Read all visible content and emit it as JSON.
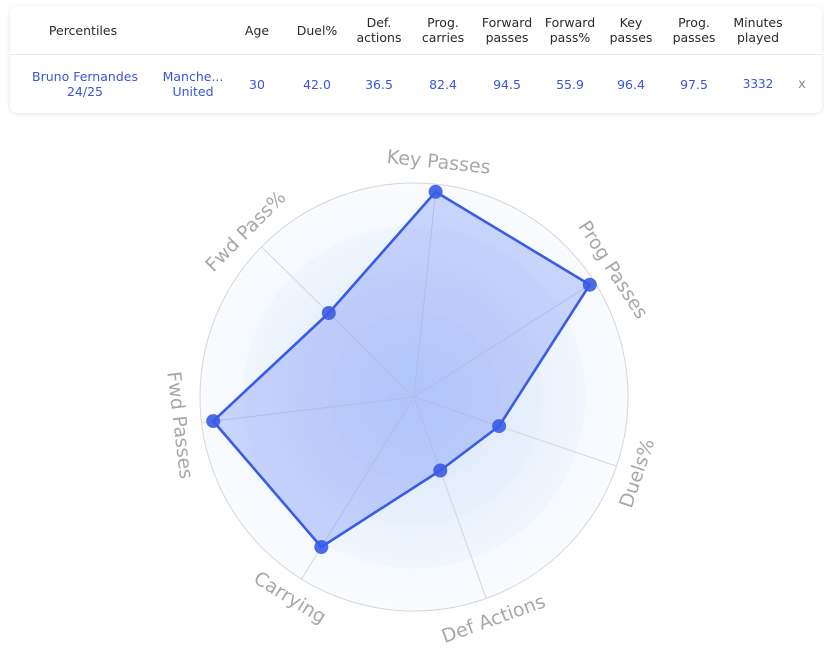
{
  "table": {
    "headers": [
      {
        "key": "percentiles",
        "label": "Percentiles"
      },
      {
        "key": "team",
        "label": ""
      },
      {
        "key": "age",
        "label": "Age"
      },
      {
        "key": "duel",
        "label": "Duel%"
      },
      {
        "key": "def_actions",
        "label": "Def.\nactions"
      },
      {
        "key": "prog_carries",
        "label": "Prog.\ncarries"
      },
      {
        "key": "forward_passes",
        "label": "Forward\npasses"
      },
      {
        "key": "forward_pass_pct",
        "label": "Forward\npass%"
      },
      {
        "key": "key_passes",
        "label": "Key\npasses"
      },
      {
        "key": "prog_passes",
        "label": "Prog.\npasses"
      },
      {
        "key": "minutes",
        "label": "Minutes\nplayed"
      }
    ],
    "row": {
      "player": "Bruno Fernandes\n24/25",
      "team": "Manche...\nUnited",
      "age": "30",
      "duel": "42.0",
      "def_actions": "36.5",
      "prog_carries": "82.4",
      "forward_passes": "94.5",
      "forward_pass_pct": "55.9",
      "key_passes": "96.4",
      "prog_passes": "97.5",
      "minutes": "3332",
      "remove_label": "x"
    }
  },
  "chart_data": {
    "type": "radar",
    "axes": [
      "Key Passes",
      "Prog Passes",
      "Duels%",
      "Def Actions",
      "Carrying",
      "Fwd Passes",
      "Fwd Pass%"
    ],
    "series": [
      {
        "values": [
          96.4,
          97.5,
          42.0,
          36.5,
          82.4,
          94.5,
          55.9
        ]
      }
    ],
    "range": [
      0,
      100
    ],
    "rings": 5,
    "colors": {
      "line": "#3a5be6",
      "fill": "#6f8cf5",
      "point": "#3a5be6",
      "grid": "#d4d6db",
      "ring_inner": "#d3e3fb",
      "ring_outer": "#f4f8fd"
    }
  }
}
